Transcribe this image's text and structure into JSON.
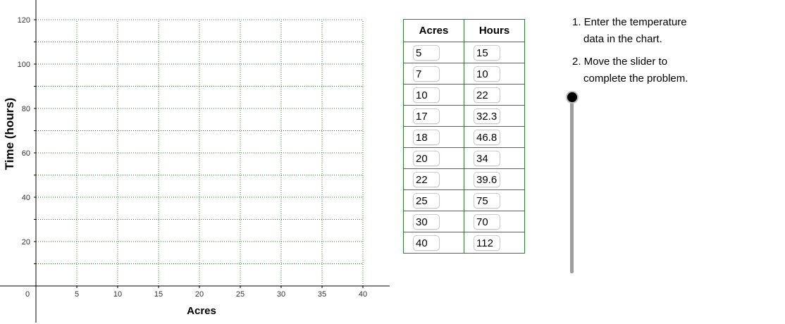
{
  "graph": {
    "x_axis_label": "Acres",
    "y_axis_label": "Time (hours)",
    "x_ticks": [
      "5",
      "10",
      "15",
      "20",
      "25",
      "30",
      "35",
      "40"
    ],
    "y_ticks": [
      "20",
      "40",
      "60",
      "80",
      "100",
      "120"
    ],
    "origin_label": "0",
    "grid_color": "#2e7d32"
  },
  "table": {
    "headers": [
      "Acres",
      "Hours"
    ],
    "rows": [
      {
        "acres": "5",
        "hours": "15"
      },
      {
        "acres": "7",
        "hours": "10"
      },
      {
        "acres": "10",
        "hours": "22"
      },
      {
        "acres": "17",
        "hours": "32.3"
      },
      {
        "acres": "18",
        "hours": "46.8"
      },
      {
        "acres": "20",
        "hours": "34"
      },
      {
        "acres": "22",
        "hours": "39.6"
      },
      {
        "acres": "25",
        "hours": "75"
      },
      {
        "acres": "30",
        "hours": "70"
      },
      {
        "acres": "40",
        "hours": "112"
      }
    ],
    "border_color": "#2e7d32"
  },
  "instructions": {
    "step1_line1": "1. Enter the temperature",
    "step1_line2": "data in the chart.",
    "step2_line1": "2. Move the slider to",
    "step2_line2": "complete the problem."
  },
  "slider": {
    "orientation": "vertical",
    "value_fraction": 0
  }
}
